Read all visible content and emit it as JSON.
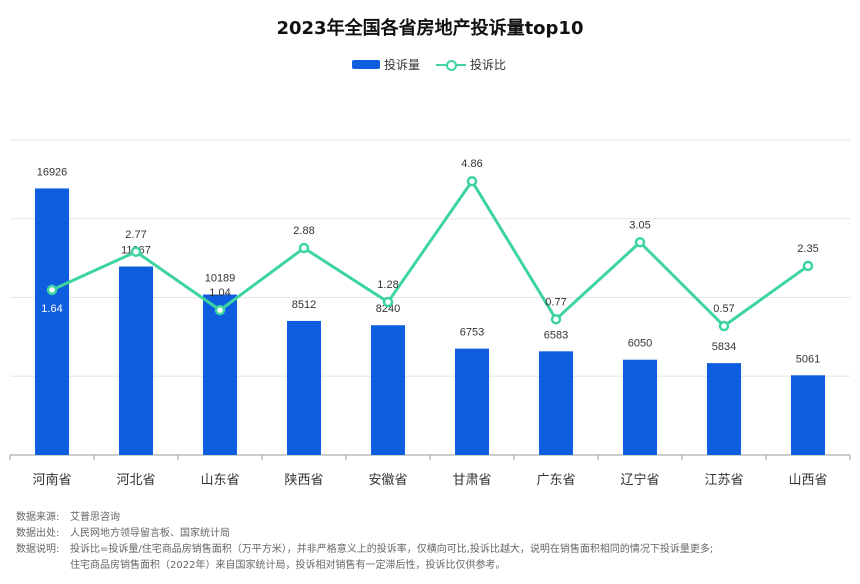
{
  "chart_data": {
    "type": "bar",
    "title": "2023年全国各省房地产投诉量top10",
    "categories": [
      "河南省",
      "河北省",
      "山东省",
      "陕西省",
      "安徽省",
      "甘肃省",
      "广东省",
      "辽宁省",
      "江苏省",
      "山西省"
    ],
    "series": [
      {
        "name": "投诉量",
        "type": "bar",
        "values": [
          16926,
          11967,
          10189,
          8512,
          8240,
          6753,
          6583,
          6050,
          5834,
          5061
        ],
        "color": "#0f5ee0"
      },
      {
        "name": "投诉比",
        "type": "line",
        "values": [
          1.64,
          2.77,
          1.04,
          2.88,
          1.28,
          4.86,
          0.77,
          3.05,
          0.57,
          2.35
        ],
        "color": "#3ed4a0"
      }
    ],
    "bar_axis": {
      "ylim": [
        0,
        20000
      ]
    },
    "line_axis": {
      "ylim": [
        -3.25,
        6.08
      ]
    },
    "legend_position": "top-center",
    "grid": true
  },
  "notes": {
    "source_label": "数据来源:",
    "source_value": "艾普思咨询",
    "origin_label": "数据出处:",
    "origin_value": "人民网地方领导留言板、国家统计局",
    "explain_label": "数据说明:",
    "explain_line1": "投诉比=投诉量/住宅商品房销售面积（万平方米），并非严格意义上的投诉率，仅横向可比,投诉比越大，说明在销售面积相同的情况下投诉量更多;",
    "explain_line2": "住宅商品房销售面积（2022年）来自国家统计局，投诉相对销售有一定滞后性，投诉比仅供参考。"
  }
}
